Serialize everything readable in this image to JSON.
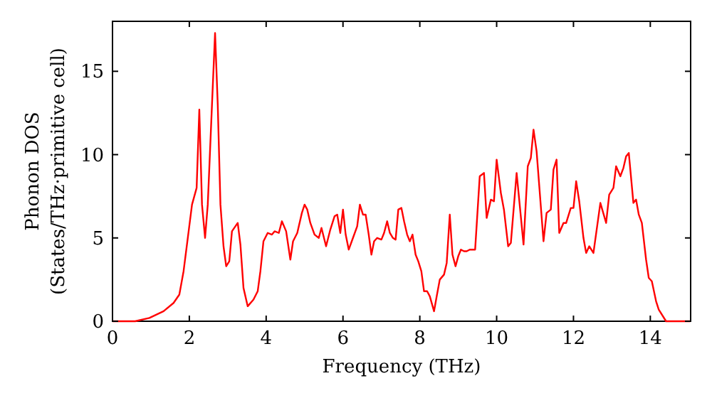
{
  "chart_data": {
    "type": "line",
    "xlabel": "Frequency (THz)",
    "ylabel": "Phonon DOS\n(States/THz·primitive cell)",
    "xlim": [
      0,
      15.05
    ],
    "ylim": [
      0,
      18
    ],
    "xticks": [
      0,
      2,
      4,
      6,
      8,
      10,
      12,
      14
    ],
    "yticks": [
      0,
      5,
      10,
      15
    ],
    "grid": false,
    "marker": "none",
    "line_style": "solid",
    "series": [
      {
        "color": "#ff0000",
        "x": [
          0,
          0.59,
          0.96,
          1.33,
          1.59,
          1.74,
          1.85,
          1.96,
          2.07,
          2.19,
          2.26,
          2.33,
          2.41,
          2.48,
          2.59,
          2.67,
          2.74,
          2.81,
          2.89,
          2.96,
          3.04,
          3.11,
          3.26,
          3.33,
          3.41,
          3.52,
          3.67,
          3.78,
          3.85,
          3.93,
          4.04,
          4.15,
          4.22,
          4.33,
          4.41,
          4.52,
          4.63,
          4.7,
          4.81,
          4.93,
          5,
          5.07,
          5.15,
          5.26,
          5.37,
          5.44,
          5.56,
          5.67,
          5.78,
          5.85,
          5.93,
          6,
          6.07,
          6.15,
          6.26,
          6.37,
          6.44,
          6.52,
          6.59,
          6.67,
          6.74,
          6.81,
          6.89,
          7,
          7.07,
          7.15,
          7.22,
          7.3,
          7.37,
          7.44,
          7.52,
          7.59,
          7.67,
          7.74,
          7.81,
          7.89,
          7.96,
          8.04,
          8.11,
          8.19,
          8.26,
          8.37,
          8.44,
          8.52,
          8.63,
          8.7,
          8.78,
          8.85,
          8.93,
          9,
          9.07,
          9.15,
          9.22,
          9.3,
          9.44,
          9.56,
          9.67,
          9.74,
          9.85,
          9.93,
          10,
          10.11,
          10.19,
          10.3,
          10.37,
          10.52,
          10.7,
          10.81,
          10.89,
          10.96,
          11.04,
          11.22,
          11.3,
          11.41,
          11.48,
          11.56,
          11.63,
          11.74,
          11.81,
          11.93,
          12,
          12.07,
          12.15,
          12.26,
          12.33,
          12.41,
          12.52,
          12.7,
          12.85,
          12.93,
          13.04,
          13.11,
          13.22,
          13.3,
          13.37,
          13.44,
          13.56,
          13.63,
          13.7,
          13.78,
          13.89,
          13.96,
          14.04,
          14.15,
          14.22,
          14.41,
          15.04
        ],
        "values": [
          0,
          0,
          0.2,
          0.6,
          1.1,
          1.6,
          3,
          5,
          7,
          8,
          12.7,
          7,
          5,
          7,
          13,
          17.3,
          13,
          7,
          4.5,
          3.3,
          3.6,
          5.4,
          5.9,
          4.6,
          2,
          0.9,
          1.3,
          1.8,
          3,
          4.8,
          5.3,
          5.2,
          5.4,
          5.3,
          6,
          5.4,
          3.7,
          4.8,
          5.3,
          6.5,
          7,
          6.7,
          5.9,
          5.2,
          5,
          5.6,
          4.5,
          5.5,
          6.3,
          6.4,
          5.3,
          6.7,
          5.2,
          4.3,
          5,
          5.7,
          7,
          6.4,
          6.4,
          5.2,
          4,
          4.8,
          5,
          4.9,
          5.3,
          6,
          5.3,
          5,
          4.9,
          6.7,
          6.8,
          6,
          5.2,
          4.8,
          5.2,
          4,
          3.6,
          3,
          1.8,
          1.8,
          1.5,
          0.6,
          1.5,
          2.5,
          2.8,
          3.5,
          6.4,
          4,
          3.3,
          3.9,
          4.3,
          4.2,
          4.2,
          4.3,
          4.3,
          8.7,
          8.9,
          6.2,
          7.3,
          7.2,
          9.7,
          7.7,
          6.7,
          4.5,
          4.7,
          8.9,
          4.6,
          9.3,
          9.8,
          11.5,
          10.2,
          4.8,
          6.5,
          6.7,
          9.1,
          9.7,
          5.3,
          5.9,
          5.9,
          6.8,
          6.8,
          8.4,
          7.2,
          5,
          4.1,
          4.5,
          4.1,
          7.1,
          5.9,
          7.6,
          8,
          9.3,
          8.7,
          9.2,
          9.9,
          10.1,
          7.1,
          7.3,
          6.4,
          5.9,
          3.7,
          2.6,
          2.4,
          1.2,
          0.7,
          0,
          0
        ]
      }
    ]
  }
}
